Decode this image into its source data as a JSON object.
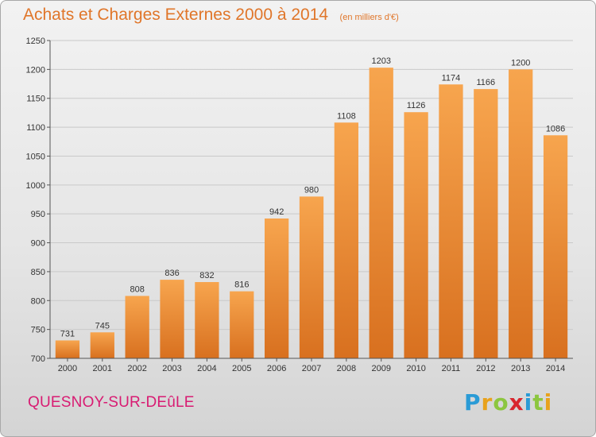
{
  "title": "Achats et Charges Externes 2000 à 2014",
  "unit": "(en milliers d'€)",
  "commune": "QUESNOY-SUR-DEûLE",
  "brand": {
    "text": "Proxiti",
    "letter_colors": [
      "#2a9bd6",
      "#e8a21c",
      "#8cc63f",
      "#d8262e",
      "#2a9bd6",
      "#8cc63f",
      "#e8a21c"
    ]
  },
  "colors": {
    "bar_light": "#f7a54e",
    "bar_dark": "#d8701f",
    "grid": "#c9c9c9",
    "title": "#e0762a",
    "commune": "#d81b72"
  },
  "chart_data": {
    "type": "bar",
    "title": "Achats et Charges Externes 2000 à 2014",
    "subtitle": "(en milliers d'€)",
    "categories": [
      "2000",
      "2001",
      "2002",
      "2003",
      "2004",
      "2005",
      "2006",
      "2007",
      "2008",
      "2009",
      "2010",
      "2011",
      "2012",
      "2013",
      "2014"
    ],
    "values": [
      731,
      745,
      808,
      836,
      832,
      816,
      942,
      980,
      1108,
      1203,
      1126,
      1174,
      1166,
      1200,
      1086
    ],
    "ylim": [
      700,
      1250
    ],
    "yticks": [
      700,
      750,
      800,
      850,
      900,
      950,
      1000,
      1050,
      1100,
      1150,
      1200,
      1250
    ],
    "grid": true,
    "xlabel": "",
    "ylabel": ""
  }
}
